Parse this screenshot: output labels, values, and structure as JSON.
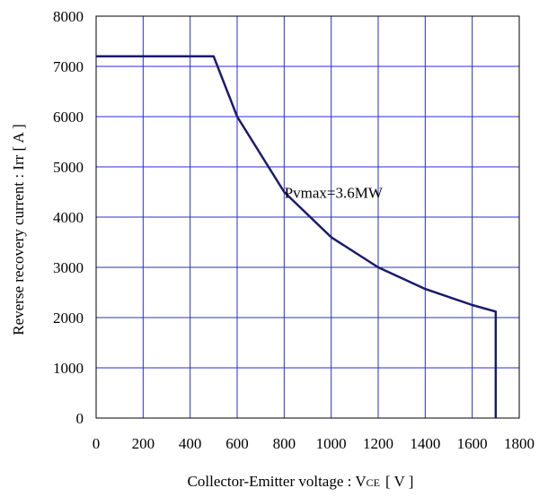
{
  "chart_data": {
    "type": "line",
    "xlabel_main": "Collector-Emitter voltage : V",
    "xlabel_sub": "CE",
    "xlabel_unit": "[ V ]",
    "ylabel": "Reverse recovery current : Irr [ A ]",
    "xlim": [
      0,
      1800
    ],
    "ylim": [
      0,
      8000
    ],
    "x_ticks": [
      0,
      200,
      400,
      600,
      800,
      1000,
      1200,
      1400,
      1600,
      1800
    ],
    "y_ticks": [
      0,
      1000,
      2000,
      3000,
      4000,
      5000,
      6000,
      7000,
      8000
    ],
    "grid": true,
    "annotation": "Pvmax=3.6MW",
    "series": [
      {
        "color": "#1a1a6e",
        "x": [
          0,
          500,
          600,
          800,
          1000,
          1200,
          1400,
          1600,
          1700,
          1700
        ],
        "y": [
          7200,
          7200,
          6000,
          4500,
          3600,
          3000,
          2570,
          2250,
          2120,
          0
        ]
      }
    ],
    "grid_color": "#2b2bd6"
  }
}
